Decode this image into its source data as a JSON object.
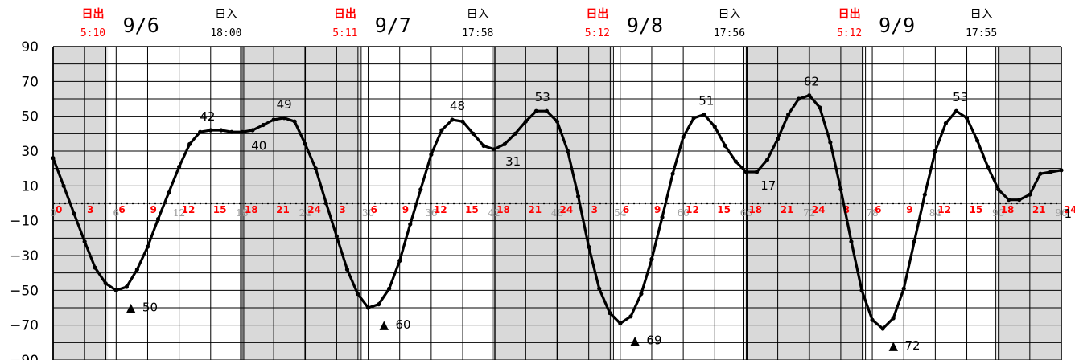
{
  "chart_data": {
    "type": "line",
    "xlabel": "",
    "ylabel": "",
    "xlim": [
      0,
      96
    ],
    "ylim": [
      -90,
      90
    ],
    "y_ticks": [
      "90",
      "70",
      "50",
      "30",
      "10",
      "−10",
      "−30",
      "−50",
      "−70",
      "−90"
    ],
    "x_cumulative_ticks": [
      {
        "x": 0,
        "label": "0"
      },
      {
        "x": 6,
        "label": "6"
      },
      {
        "x": 12,
        "label": "12"
      },
      {
        "x": 18,
        "label": "18"
      },
      {
        "x": 24,
        "label": "24"
      },
      {
        "x": 30,
        "label": "30"
      },
      {
        "x": 36,
        "label": "36"
      },
      {
        "x": 42,
        "label": "42"
      },
      {
        "x": 48,
        "label": "48"
      },
      {
        "x": 54,
        "label": "54"
      },
      {
        "x": 60,
        "label": "60"
      },
      {
        "x": 66,
        "label": "66"
      },
      {
        "x": 72,
        "label": "72"
      },
      {
        "x": 78,
        "label": "78"
      },
      {
        "x": 84,
        "label": "84"
      },
      {
        "x": 90,
        "label": "90"
      },
      {
        "x": 96,
        "label": "96"
      }
    ],
    "x_hour_labels": [
      {
        "x": 0,
        "label": "0"
      },
      {
        "x": 3,
        "label": "3"
      },
      {
        "x": 6,
        "label": "6"
      },
      {
        "x": 9,
        "label": "9"
      },
      {
        "x": 12,
        "label": "12"
      },
      {
        "x": 15,
        "label": "15"
      },
      {
        "x": 18,
        "label": "18"
      },
      {
        "x": 21,
        "label": "21"
      },
      {
        "x": 24,
        "label": "24"
      },
      {
        "x": 27,
        "label": "3"
      },
      {
        "x": 30,
        "label": "6"
      },
      {
        "x": 33,
        "label": "9"
      },
      {
        "x": 36,
        "label": "12"
      },
      {
        "x": 39,
        "label": "15"
      },
      {
        "x": 42,
        "label": "18"
      },
      {
        "x": 45,
        "label": "21"
      },
      {
        "x": 48,
        "label": "24"
      },
      {
        "x": 51,
        "label": "3"
      },
      {
        "x": 54,
        "label": "6"
      },
      {
        "x": 57,
        "label": "9"
      },
      {
        "x": 60,
        "label": "12"
      },
      {
        "x": 63,
        "label": "15"
      },
      {
        "x": 66,
        "label": "18"
      },
      {
        "x": 69,
        "label": "21"
      },
      {
        "x": 72,
        "label": "24"
      },
      {
        "x": 75,
        "label": "3"
      },
      {
        "x": 78,
        "label": "6"
      },
      {
        "x": 81,
        "label": "9"
      },
      {
        "x": 84,
        "label": "12"
      },
      {
        "x": 87,
        "label": "15"
      },
      {
        "x": 90,
        "label": "18"
      },
      {
        "x": 93,
        "label": "21"
      },
      {
        "x": 96,
        "label": "24"
      }
    ],
    "night_shading": [
      [
        0,
        5.17
      ],
      [
        18,
        29.18
      ],
      [
        41.97,
        53.2
      ],
      [
        65.93,
        77.2
      ],
      [
        89.92,
        96
      ]
    ],
    "days": [
      {
        "date": "9/6",
        "sunrise_label": "日出",
        "sunrise_time": "5:10",
        "sunset_label": "日入",
        "sunset_time": "18:00",
        "sunrise_x": 5.17,
        "sunset_x": 18.0
      },
      {
        "date": "9/7",
        "sunrise_label": "日出",
        "sunrise_time": "5:11",
        "sunset_label": "日入",
        "sunset_time": "17:58",
        "sunrise_x": 29.18,
        "sunset_x": 41.97
      },
      {
        "date": "9/8",
        "sunrise_label": "日出",
        "sunrise_time": "5:12",
        "sunset_label": "日入",
        "sunset_time": "17:56",
        "sunrise_x": 53.2,
        "sunset_x": 65.93
      },
      {
        "date": "9/9",
        "sunrise_label": "日出",
        "sunrise_time": "5:12",
        "sunset_label": "日入",
        "sunset_time": "17:55",
        "sunrise_x": 77.2,
        "sunset_x": 89.92
      }
    ],
    "series": [
      {
        "x": [
          0,
          1,
          2,
          3,
          4,
          5,
          6,
          7,
          8,
          9,
          10,
          11,
          12,
          13,
          14,
          15,
          16,
          17,
          18,
          19,
          20,
          21,
          22,
          23,
          24,
          25,
          26,
          27,
          28,
          29,
          30,
          31,
          32,
          33,
          34,
          35,
          36,
          37,
          38,
          39,
          40,
          41,
          42,
          43,
          44,
          45,
          46,
          47,
          48,
          49,
          50,
          51,
          52,
          53,
          54,
          55,
          56,
          57,
          58,
          59,
          60,
          61,
          62,
          63,
          64,
          65,
          66,
          67,
          68,
          69,
          70,
          71,
          72,
          73,
          74,
          75,
          76,
          77,
          78,
          79,
          80,
          81,
          82,
          83,
          84,
          85,
          86,
          87,
          88,
          89,
          90,
          91,
          92,
          93,
          94,
          95,
          96
        ],
        "values": [
          26,
          10,
          -6,
          -22,
          -37,
          -46,
          -50,
          -48,
          -38,
          -25,
          -9,
          6,
          21,
          34,
          41,
          42,
          42,
          41,
          41,
          42,
          45,
          48,
          49,
          47,
          34,
          20,
          0,
          -19,
          -38,
          -52,
          -60,
          -58,
          -49,
          -33,
          -12,
          8,
          28,
          42,
          48,
          47,
          40,
          33,
          31,
          34,
          40,
          47,
          53,
          53,
          47,
          30,
          4,
          -25,
          -49,
          -63,
          -69,
          -65,
          -52,
          -32,
          -8,
          17,
          38,
          49,
          51,
          44,
          33,
          24,
          18,
          18,
          25,
          37,
          51,
          60,
          62,
          55,
          35,
          8,
          -22,
          -50,
          -67,
          -72,
          -66,
          -49,
          -22,
          5,
          30,
          46,
          53,
          49,
          36,
          21,
          8,
          2,
          2,
          5,
          17,
          18,
          19
        ]
      }
    ],
    "annotations": [
      {
        "x": 14.7,
        "y": 42,
        "label": "42",
        "kind": "high"
      },
      {
        "x": 18.1,
        "y": 40,
        "label": "40",
        "kind": "low"
      },
      {
        "x": 22.0,
        "y": 49,
        "label": "49",
        "kind": "high"
      },
      {
        "x": 6.2,
        "y": -50,
        "label": "50",
        "kind": "low",
        "marker": "▲"
      },
      {
        "x": 30.3,
        "y": -60,
        "label": "60",
        "kind": "low",
        "marker": "▲"
      },
      {
        "x": 38.5,
        "y": 48,
        "label": "48",
        "kind": "high"
      },
      {
        "x": 42.3,
        "y": 31,
        "label": "31",
        "kind": "low"
      },
      {
        "x": 46.6,
        "y": 53,
        "label": "53",
        "kind": "high"
      },
      {
        "x": 54.2,
        "y": -69,
        "label": "69",
        "kind": "low",
        "marker": "▲"
      },
      {
        "x": 62.2,
        "y": 51,
        "label": "51",
        "kind": "high"
      },
      {
        "x": 66.6,
        "y": 17,
        "label": "17",
        "kind": "low"
      },
      {
        "x": 72.2,
        "y": 62,
        "label": "62",
        "kind": "high"
      },
      {
        "x": 78.8,
        "y": -72,
        "label": "72",
        "kind": "low",
        "marker": "▲"
      },
      {
        "x": 86.4,
        "y": 53,
        "label": "53",
        "kind": "high"
      },
      {
        "x": 95.5,
        "y": 1,
        "label": "1",
        "kind": "low"
      }
    ]
  },
  "colors": {
    "night": "#d9d9d9",
    "curve": "#000000",
    "hour_label": "#ff0000",
    "sunrise": "#ff0000",
    "sunset": "#000000"
  }
}
